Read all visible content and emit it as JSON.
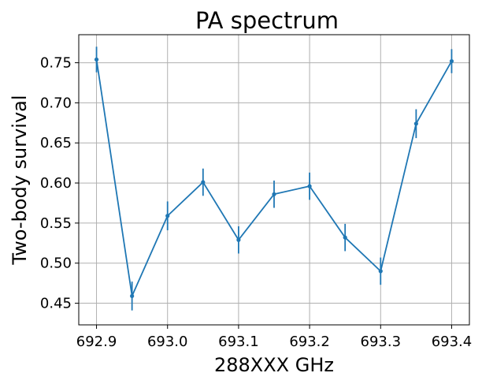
{
  "chart_data": {
    "type": "line",
    "title": "PA spectrum",
    "xlabel": "288XXX GHz",
    "ylabel": "Two-body survival",
    "xlim": [
      692.875,
      693.425
    ],
    "ylim": [
      0.423,
      0.785
    ],
    "grid": true,
    "x_ticks": [
      "692.9",
      "693.0",
      "693.1",
      "693.2",
      "693.3",
      "693.4"
    ],
    "y_ticks": [
      "0.45",
      "0.50",
      "0.55",
      "0.60",
      "0.65",
      "0.70",
      "0.75"
    ],
    "series": [
      {
        "color": "#1f77b4",
        "marker": "point",
        "x": [
          692.9,
          692.95,
          693.0,
          693.05,
          693.1,
          693.15,
          693.2,
          693.25,
          693.3,
          693.35,
          693.4
        ],
        "y": [
          0.754,
          0.459,
          0.559,
          0.601,
          0.529,
          0.586,
          0.596,
          0.532,
          0.49,
          0.674,
          0.752
        ],
        "yerr": [
          0.016,
          0.018,
          0.018,
          0.017,
          0.017,
          0.017,
          0.017,
          0.017,
          0.017,
          0.018,
          0.015
        ]
      }
    ]
  }
}
